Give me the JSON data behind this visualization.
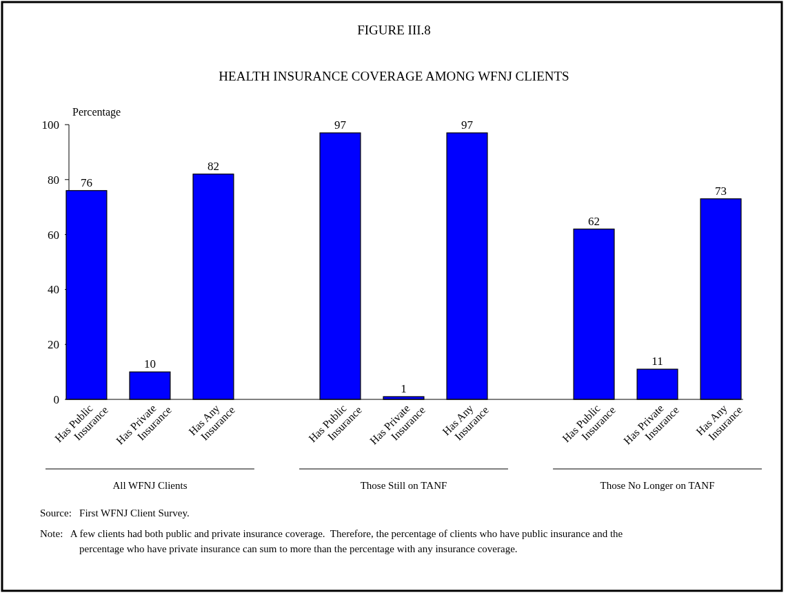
{
  "chart_data": {
    "type": "bar",
    "title": "FIGURE III.8",
    "subtitle": "HEALTH INSURANCE COVERAGE AMONG WFNJ CLIENTS",
    "ylabel": "Percentage",
    "categories": [
      "Has Public Insurance",
      "Has Private Insurance",
      "Has Any Insurance",
      null,
      "Has Public Insurance",
      "Has Private Insurance",
      "Has Any Insurance",
      null,
      "Has Public Insurance",
      "Has Private Insurance",
      "Has Any Insurance"
    ],
    "values": [
      76,
      10,
      82,
      null,
      97,
      1,
      97,
      null,
      62,
      11,
      73
    ],
    "color": "#0000ff",
    "data_labels": true,
    "ylim": [
      0,
      100
    ],
    "yticks": [
      0,
      20,
      40,
      60,
      80,
      100
    ],
    "grid": false,
    "annotations": [
      "All WFNJ Clients",
      "Those Still on TANF",
      "Those No Longer on TANF",
      "Source:   First WFNJ Client Survey.",
      "Note:   A few clients had both public and private insurance coverage.  Therefore, the percentage of clients who have public insurance and the percentage who have private insurance can sum to more than the percentage with any insurance coverage."
    ]
  }
}
